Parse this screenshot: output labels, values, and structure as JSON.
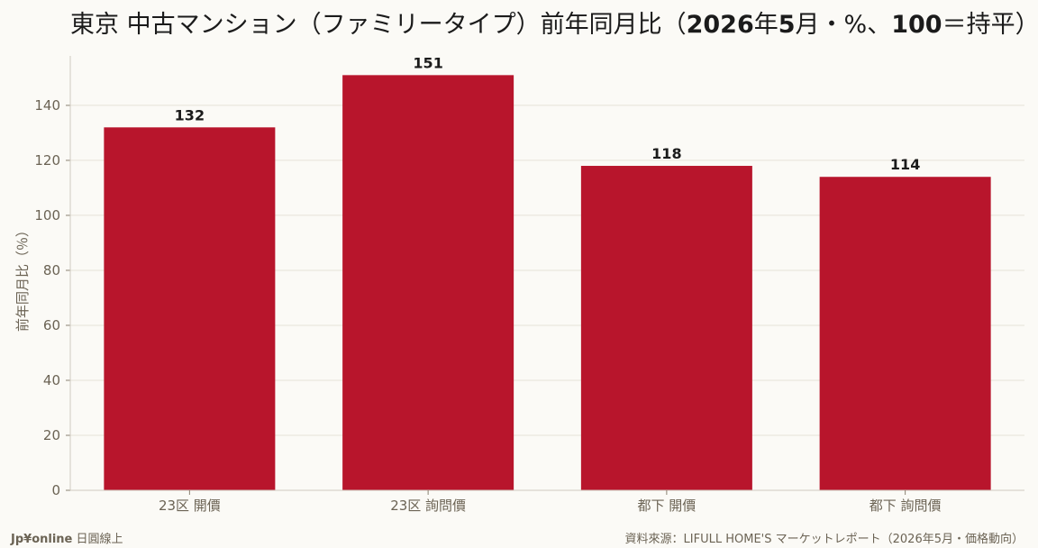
{
  "chart_data": {
    "type": "bar",
    "title_parts": [
      {
        "text": "東京 中古マンション（ファミリータイプ）前年同月比（",
        "bold": false
      },
      {
        "text": "2026",
        "bold": true
      },
      {
        "text": "年",
        "bold": false
      },
      {
        "text": "5",
        "bold": true
      },
      {
        "text": "月・%、",
        "bold": false
      },
      {
        "text": "100",
        "bold": true
      },
      {
        "text": "＝持平）",
        "bold": false
      }
    ],
    "categories": [
      "23区 開價",
      "23区 詢問價",
      "都下 開價",
      "都下 詢問價"
    ],
    "values": [
      132,
      151,
      118,
      114
    ],
    "data_labels": [
      "132",
      "151",
      "118",
      "114"
    ],
    "xlabel": "",
    "ylabel": "前年同月比（％）",
    "ylim": [
      0,
      158
    ],
    "yticks": [
      0,
      20,
      40,
      60,
      80,
      100,
      120,
      140
    ],
    "grid": true,
    "bar_color": "#B8152C"
  },
  "footer": {
    "brand_bold": "Jp¥online",
    "brand_rest": " 日圓線上",
    "source": "資料來源：LIFULL HOME'S マーケットレポート（2026年5月・価格動向）"
  }
}
